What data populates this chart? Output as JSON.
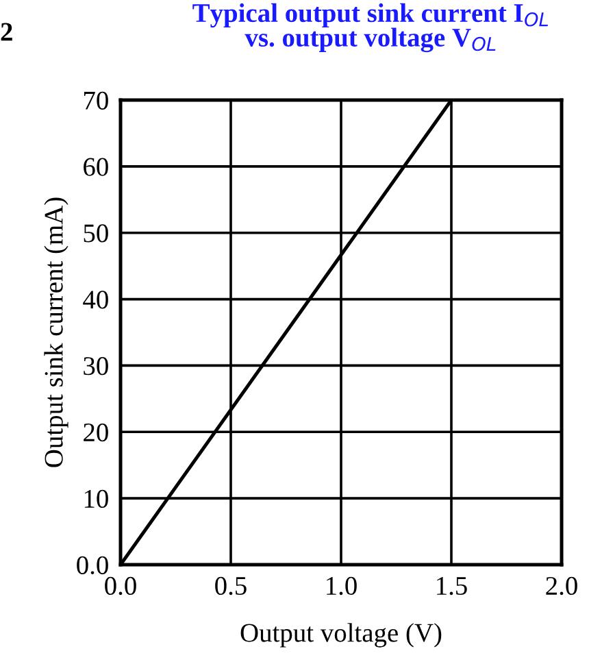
{
  "chart_data": {
    "type": "line",
    "title": "Typical output sink current I$_{OL}$\nvs. output voltage V$_{OL}$",
    "xlabel": "Output voltage (V)",
    "ylabel": "Output sink current (mA)",
    "annotations": [
      "2"
    ],
    "x": [
      0,
      1.5
    ],
    "series": [
      {
        "color": "#000000",
        "values": [
          0,
          70
        ]
      }
    ],
    "xlim": [
      0,
      2
    ],
    "ylim": [
      0,
      70
    ],
    "xticks": [
      {
        "value": 0,
        "label": "0.0"
      },
      0.5,
      {
        "value": 1,
        "label": "1.0"
      },
      1.5,
      {
        "value": 2,
        "label": "2.0"
      }
    ],
    "yticks": [
      {
        "value": 0,
        "label": "0.0"
      },
      10,
      20,
      30,
      40,
      50,
      60,
      70
    ],
    "grid": true,
    "marker": "none",
    "line_style": "solid"
  }
}
